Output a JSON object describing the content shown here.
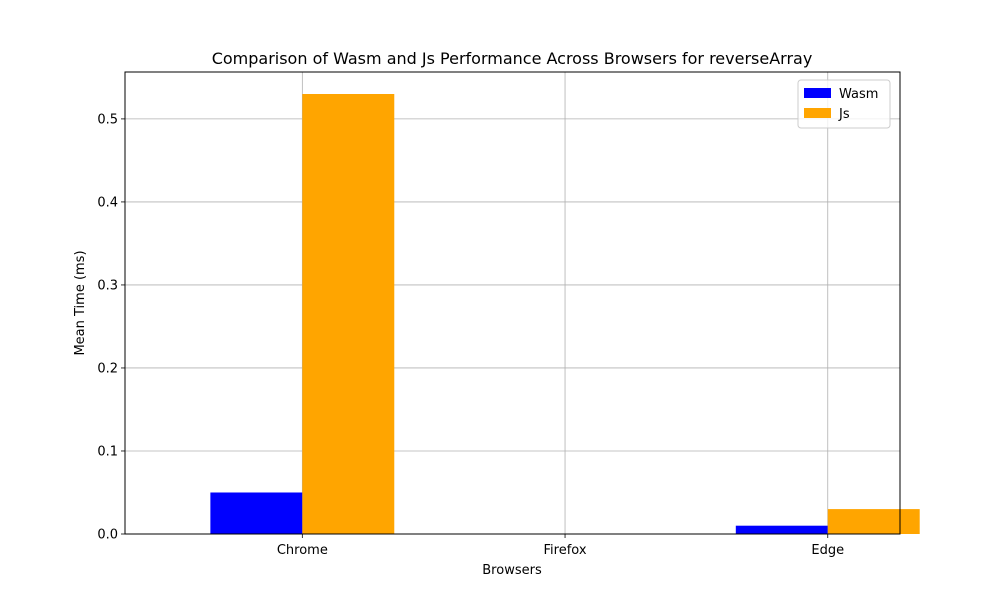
{
  "chart_data": {
    "type": "bar",
    "title": "Comparison of Wasm and Js Performance Across Browsers for reverseArray",
    "xlabel": "Browsers",
    "ylabel": "Mean Time (ms)",
    "categories": [
      "Chrome",
      "Firefox",
      "Edge"
    ],
    "series": [
      {
        "name": "Wasm",
        "color": "#0000ff",
        "values": [
          0.05,
          0,
          0.01
        ]
      },
      {
        "name": "Js",
        "color": "#ffa500",
        "values": [
          0.53,
          0,
          0.03
        ]
      }
    ],
    "ylim": [
      0,
      0.5565
    ],
    "yticks": [
      0.0,
      0.1,
      0.2,
      0.3,
      0.4,
      0.5
    ],
    "grid": true,
    "legend_position": "top-right"
  }
}
